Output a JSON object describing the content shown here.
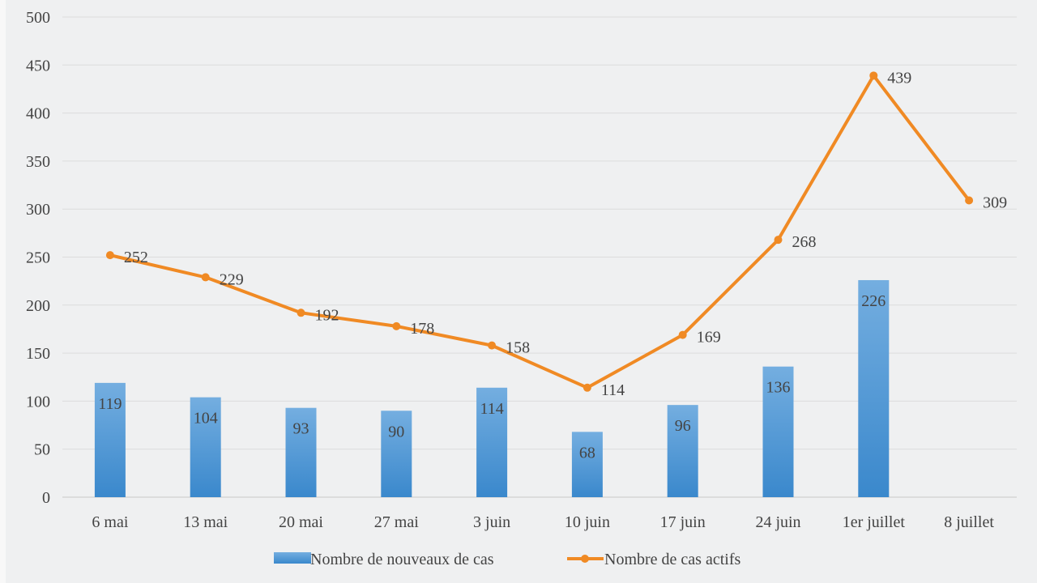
{
  "chart_data": {
    "type": "bar+line",
    "title": "",
    "xlabel": "",
    "ylabel": "",
    "ylim": [
      0,
      500
    ],
    "yticks": [
      0,
      50,
      100,
      150,
      200,
      250,
      300,
      350,
      400,
      450,
      500
    ],
    "grid": true,
    "legend_position": "bottom",
    "categories": [
      "6 mai",
      "13 mai",
      "20 mai",
      "27 mai",
      "3 juin",
      "10 juin",
      "17 juin",
      "24 juin",
      "1er juillet",
      "8 juillet"
    ],
    "series": [
      {
        "name": "Nombre de nouveaux de cas",
        "type": "bar",
        "color": "#4a90d0",
        "values": [
          119,
          104,
          93,
          90,
          114,
          68,
          96,
          136,
          226,
          null
        ]
      },
      {
        "name": "Nombre de cas actifs",
        "type": "line",
        "color": "#f08a24",
        "values": [
          252,
          229,
          192,
          178,
          158,
          114,
          169,
          268,
          439,
          309
        ]
      }
    ]
  }
}
